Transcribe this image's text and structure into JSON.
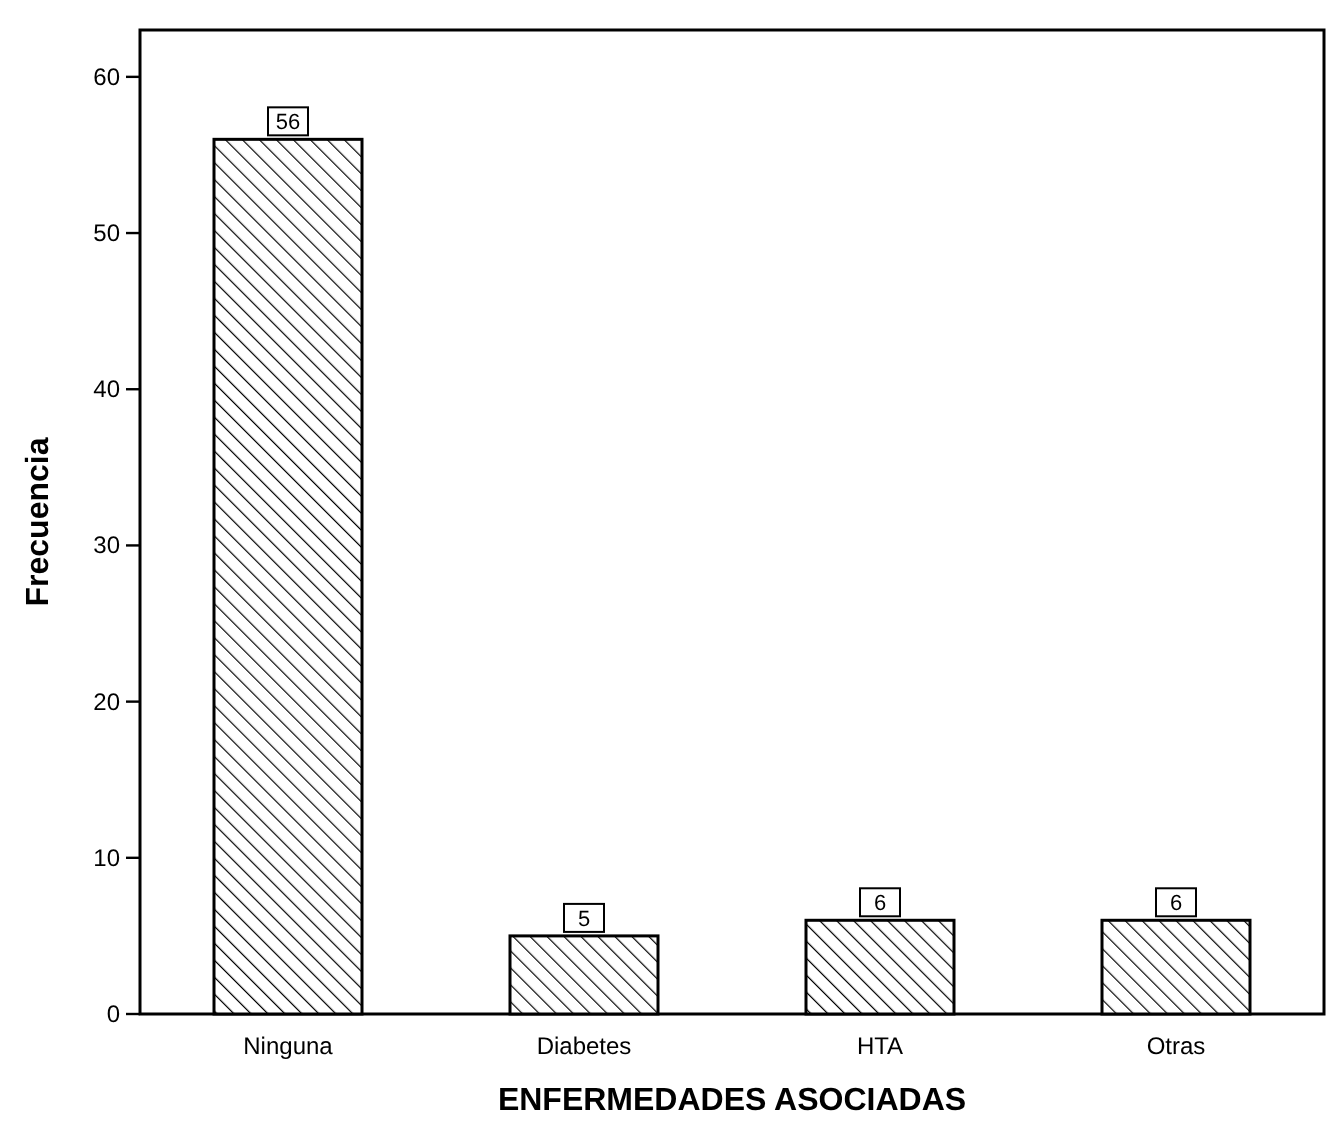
{
  "chart_data": {
    "type": "bar",
    "xlabel": "ENFERMEDADES ASOCIADAS",
    "ylabel": "Frecuencia",
    "categories": [
      "Ninguna",
      "Diabetes",
      "HTA",
      "Otras"
    ],
    "values": [
      56,
      5,
      6,
      6
    ],
    "color": "#000000",
    "ylim": [
      0,
      63
    ],
    "yticks": [
      0,
      10,
      20,
      30,
      40,
      50,
      60
    ],
    "grid": false,
    "data_labels": true
  }
}
